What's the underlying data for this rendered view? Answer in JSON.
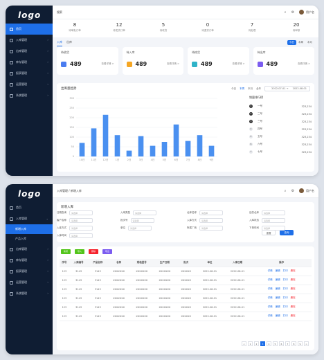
{
  "app": {
    "logo": "logo",
    "search_placeholder": "搜索",
    "user": "用户名"
  },
  "sidebar1": {
    "items": [
      "首页",
      "入库管理",
      "出库管理",
      "库存管理",
      "报表管理",
      "运营管理",
      "系统管理"
    ]
  },
  "stats": [
    {
      "value": "8",
      "label": "待审批订单"
    },
    {
      "value": "12",
      "label": "待发货订单"
    },
    {
      "value": "5",
      "label": "待收货"
    },
    {
      "value": "0",
      "label": "待退货订单"
    },
    {
      "value": "7",
      "label": "待处理"
    },
    {
      "value": "20",
      "label": "待审核"
    }
  ],
  "tabs": [
    "入库",
    "出库"
  ],
  "range": [
    "今日",
    "本周",
    "本月"
  ],
  "cards": [
    {
      "title": "待收货",
      "value": "489",
      "link": "查看详情 >",
      "color": "#4a7cf0"
    },
    {
      "title": "待入库",
      "value": "489",
      "link": "查看详情 >",
      "color": "#f5a623"
    },
    {
      "title": "待拣货",
      "value": "489",
      "link": "查看详情 >",
      "color": "#2fb3c8"
    },
    {
      "title": "待出库",
      "value": "489",
      "link": "查看详情 >",
      "color": "#7b5cf0"
    }
  ],
  "panel": {
    "title": "出库量趋势",
    "filters": [
      "今日",
      "本周",
      "本月",
      "全年"
    ],
    "date_from": "2022-07-01",
    "date_to": "2022-08-01",
    "rank_title": "销量排行榜"
  },
  "chart_data": {
    "type": "bar",
    "categories": [
      "10日",
      "11日",
      "12日",
      "1日",
      "2日",
      "3日",
      "4日",
      "5日",
      "6日",
      "7日",
      "8日",
      "9日"
    ],
    "values": [
      70,
      145,
      215,
      110,
      30,
      105,
      55,
      75,
      165,
      80,
      110,
      55
    ],
    "yticks": [
      "0",
      "50",
      "100",
      "150",
      "200",
      "250",
      "300"
    ],
    "ylim": [
      0,
      300
    ],
    "color": "#4a90f0"
  },
  "rank": [
    {
      "no": "1",
      "name": "一号",
      "val": "323,234"
    },
    {
      "no": "2",
      "name": "二号",
      "val": "323,234"
    },
    {
      "no": "3",
      "name": "三号",
      "val": "323,234"
    },
    {
      "no": "4",
      "name": "四号",
      "val": "323,234"
    },
    {
      "no": "5",
      "name": "五号",
      "val": "323,234"
    },
    {
      "no": "6",
      "name": "六号",
      "val": "323,234"
    },
    {
      "no": "7",
      "name": "七号",
      "val": "323,234"
    }
  ],
  "win2": {
    "breadcrumb": "入库管理 / 新增入库",
    "sidebar": {
      "items": [
        "首页",
        "入库管理",
        "新增入库",
        "产品入库",
        "出库管理",
        "库存管理",
        "报表管理",
        "运营管理",
        "系统管理"
      ]
    },
    "form_title": "新增入库",
    "fields": [
      [
        "日期查询",
        "入库类型",
        "仓库名称",
        "目的仓库"
      ],
      [
        "客户名称",
        "批次号",
        "入库方式",
        "入库状态"
      ],
      [
        "入库方式",
        "单位",
        "所属厂商",
        "下单时间"
      ],
      [
        "入库时间"
      ]
    ],
    "placeholder": "请选择",
    "reset": "重置",
    "query": "查询",
    "toolbar": [
      "新增",
      "导入",
      "删除",
      "导出"
    ],
    "toolbar_colors": [
      "#52c41a",
      "#52c41a",
      "#f5222d",
      "#7b5cf0"
    ],
    "columns": [
      "序号",
      "入库编号",
      "产品名称",
      "名称",
      "规格型号",
      "生产日期",
      "批次",
      "单位",
      "入库日期",
      "操作"
    ],
    "rows": [
      [
        "123",
        "3143",
        "3143",
        "XXXXXXX",
        "XXXXXXX",
        "XXXXXXX",
        "XXXXXX",
        "2022-08-01",
        "2022-08-01"
      ],
      [
        "123",
        "3143",
        "3143",
        "XXXXXXX",
        "XXXXXXX",
        "XXXXXXX",
        "XXXXXX",
        "2022-08-01",
        "2022-08-01"
      ],
      [
        "123",
        "3143",
        "3143",
        "XXXXXXX",
        "XXXXXXX",
        "XXXXXXX",
        "XXXXXX",
        "2022-08-01",
        "2022-08-01"
      ],
      [
        "123",
        "3143",
        "3143",
        "XXXXXXX",
        "XXXXXXX",
        "XXXXXXX",
        "XXXXXX",
        "2022-08-01",
        "2022-08-01"
      ],
      [
        "123",
        "3143",
        "3143",
        "XXXXXXX",
        "XXXXXXX",
        "XXXXXXX",
        "XXXXXX",
        "2022-08-01",
        "2022-08-01"
      ],
      [
        "123",
        "3143",
        "3143",
        "XXXXXXX",
        "XXXXXXX",
        "XXXXXXX",
        "XXXXXX",
        "2022-08-01",
        "2022-08-01"
      ]
    ],
    "ops": [
      "详情",
      "编辑",
      "打印",
      "删除"
    ],
    "pages": [
      "<",
      "1",
      "2",
      "3",
      "4",
      "5",
      "6",
      "7",
      "8",
      "9",
      ">"
    ],
    "active_page": "3"
  }
}
